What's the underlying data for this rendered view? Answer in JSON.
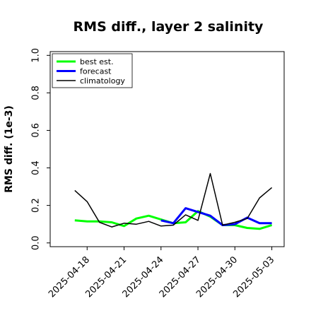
{
  "chart_data": {
    "type": "line",
    "title": "RMS diff., layer 2 salinity",
    "xlabel": "",
    "ylabel": "RMS diff. (1e-3)",
    "ylim": [
      -0.02,
      1.02
    ],
    "xlim": [
      "2025-04-15",
      "2025-05-04"
    ],
    "yticks": [
      "0.0",
      "0.2",
      "0.4",
      "0.6",
      "0.8",
      "1.0"
    ],
    "xticks": [
      {
        "date": "2025-04-18",
        "label": "2025-04-18",
        "color": "#000000"
      },
      {
        "date": "2025-04-21",
        "label": "2025-04-21",
        "color": "#000000"
      },
      {
        "date": "2025-04-24",
        "label": "2025-04-24",
        "color": "#2e8b2e"
      },
      {
        "date": "2025-04-27",
        "label": "2025-04-27",
        "color": "#000000"
      },
      {
        "date": "2025-04-30",
        "label": "2025-04-30",
        "color": "#000000"
      },
      {
        "date": "2025-05-03",
        "label": "2025-05-03",
        "color": "#000000"
      }
    ],
    "grid": false,
    "legend_position": "top-left",
    "series": [
      {
        "name": "best est.",
        "color": "#00ff00",
        "width": 3,
        "x": [
          "2025-04-17",
          "2025-04-18",
          "2025-04-19",
          "2025-04-20",
          "2025-04-21",
          "2025-04-22",
          "2025-04-23",
          "2025-04-24",
          "2025-04-25",
          "2025-04-26",
          "2025-04-27",
          "2025-04-28",
          "2025-04-29",
          "2025-04-30",
          "2025-05-01",
          "2025-05-02",
          "2025-05-03"
        ],
        "y": [
          0.12,
          0.115,
          0.115,
          0.11,
          0.09,
          0.13,
          0.145,
          0.125,
          0.105,
          0.11,
          0.17,
          0.14,
          0.095,
          0.095,
          0.08,
          0.075,
          0.095
        ]
      },
      {
        "name": "forecast",
        "color": "#0000ff",
        "width": 3,
        "x": [
          "2025-04-24",
          "2025-04-25",
          "2025-04-26",
          "2025-04-27",
          "2025-04-28",
          "2025-04-29",
          "2025-04-30",
          "2025-05-01",
          "2025-05-02",
          "2025-05-03"
        ],
        "y": [
          0.12,
          0.105,
          0.185,
          0.165,
          0.145,
          0.095,
          0.1,
          0.135,
          0.105,
          0.105
        ]
      },
      {
        "name": "climatology",
        "color": "#000000",
        "width": 1.5,
        "x": [
          "2025-04-17",
          "2025-04-18",
          "2025-04-19",
          "2025-04-20",
          "2025-04-21",
          "2025-04-22",
          "2025-04-23",
          "2025-04-24",
          "2025-04-25",
          "2025-04-26",
          "2025-04-27",
          "2025-04-28",
          "2025-04-29",
          "2025-04-30",
          "2025-05-01",
          "2025-05-02",
          "2025-05-03"
        ],
        "y": [
          0.28,
          0.22,
          0.11,
          0.085,
          0.105,
          0.1,
          0.115,
          0.09,
          0.095,
          0.15,
          0.12,
          0.37,
          0.095,
          0.11,
          0.13,
          0.24,
          0.295
        ]
      }
    ]
  }
}
